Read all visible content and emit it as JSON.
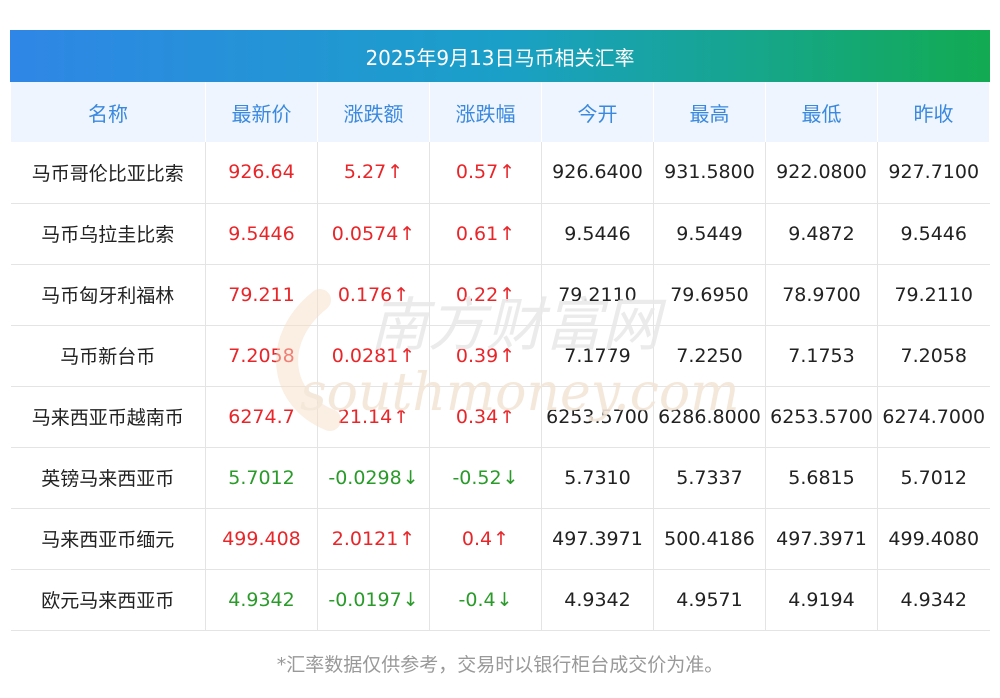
{
  "title": "2025年9月13日马币相关汇率",
  "watermark": {
    "cn": "南方财富网",
    "en": "southmoney.com"
  },
  "columns": [
    "名称",
    "最新价",
    "涨跌额",
    "涨跌幅",
    "今开",
    "最高",
    "最低",
    "昨收"
  ],
  "rows": [
    {
      "name": "马币哥伦比亚比索",
      "latest": "926.64",
      "change": "5.27",
      "pct": "0.57",
      "dir": "up",
      "open": "926.6400",
      "high": "931.5800",
      "low": "922.0800",
      "prev": "927.7100"
    },
    {
      "name": "马币乌拉圭比索",
      "latest": "9.5446",
      "change": "0.0574",
      "pct": "0.61",
      "dir": "up",
      "open": "9.5446",
      "high": "9.5449",
      "low": "9.4872",
      "prev": "9.5446"
    },
    {
      "name": "马币匈牙利福林",
      "latest": "79.211",
      "change": "0.176",
      "pct": "0.22",
      "dir": "up",
      "open": "79.2110",
      "high": "79.6950",
      "low": "78.9700",
      "prev": "79.2110"
    },
    {
      "name": "马币新台币",
      "latest": "7.2058",
      "change": "0.0281",
      "pct": "0.39",
      "dir": "up",
      "open": "7.1779",
      "high": "7.2250",
      "low": "7.1753",
      "prev": "7.2058"
    },
    {
      "name": "马来西亚币越南币",
      "latest": "6274.7",
      "change": "21.14",
      "pct": "0.34",
      "dir": "up",
      "open": "6253.5700",
      "high": "6286.8000",
      "low": "6253.5700",
      "prev": "6274.7000"
    },
    {
      "name": "英镑马来西亚币",
      "latest": "5.7012",
      "change": "-0.0298",
      "pct": "-0.52",
      "dir": "down",
      "open": "5.7310",
      "high": "5.7337",
      "low": "5.6815",
      "prev": "5.7012"
    },
    {
      "name": "马来西亚币缅元",
      "latest": "499.408",
      "change": "2.0121",
      "pct": "0.4",
      "dir": "up",
      "open": "497.3971",
      "high": "500.4186",
      "low": "497.3971",
      "prev": "499.4080"
    },
    {
      "name": "欧元马来西亚币",
      "latest": "4.9342",
      "change": "-0.0197",
      "pct": "-0.4",
      "dir": "down",
      "open": "4.9342",
      "high": "4.9571",
      "low": "4.9194",
      "prev": "4.9342"
    }
  ],
  "arrows": {
    "up": "↑",
    "down": "↓"
  },
  "colors": {
    "up": "#e8262a",
    "down": "#2a9b2a",
    "header_text": "#3a89de",
    "header_bg": "#eef5fe",
    "title_gradient": [
      "#2f86e6",
      "#12ab52"
    ]
  },
  "footnote": "*汇率数据仅供参考，交易时以银行柜台成交价为准。"
}
